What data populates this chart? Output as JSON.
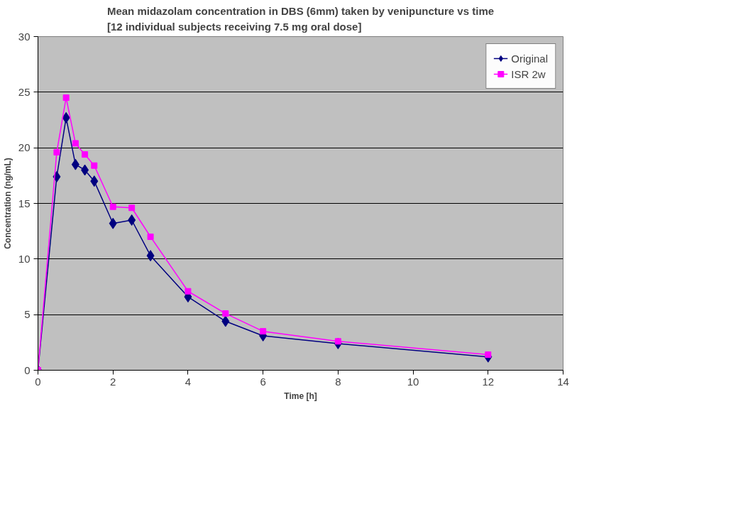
{
  "chart_data": {
    "type": "line",
    "title": "Mean midazolam concentration in DBS (6mm) taken by venipuncture vs time\n[12 individual subjects receiving 7.5 mg oral dose]",
    "xlabel": "Time [h]",
    "ylabel": "Concentration (ng/mL)",
    "x": [
      0,
      0.5,
      0.75,
      1,
      1.25,
      1.5,
      2,
      2.5,
      3,
      4,
      5,
      6,
      8,
      12
    ],
    "series": [
      {
        "name": "Original",
        "color": "#000080",
        "marker": "diamond",
        "values": [
          0,
          17.4,
          22.7,
          18.5,
          18.0,
          17.0,
          13.2,
          13.5,
          10.3,
          6.6,
          4.4,
          3.1,
          2.4,
          1.2
        ]
      },
      {
        "name": "ISR 2w",
        "color": "#ff00ff",
        "marker": "square",
        "values": [
          0,
          19.6,
          24.5,
          20.4,
          19.4,
          18.4,
          14.7,
          14.6,
          12.0,
          7.1,
          5.1,
          3.5,
          2.6,
          1.4
        ]
      }
    ],
    "xlim": [
      0,
      14
    ],
    "xticks": [
      0,
      2,
      4,
      6,
      8,
      10,
      12,
      14
    ],
    "ylim": [
      0,
      30
    ],
    "yticks": [
      0,
      5,
      10,
      15,
      20,
      25,
      30
    ],
    "grid": "y",
    "legend": "top right",
    "line_style": "solid"
  }
}
